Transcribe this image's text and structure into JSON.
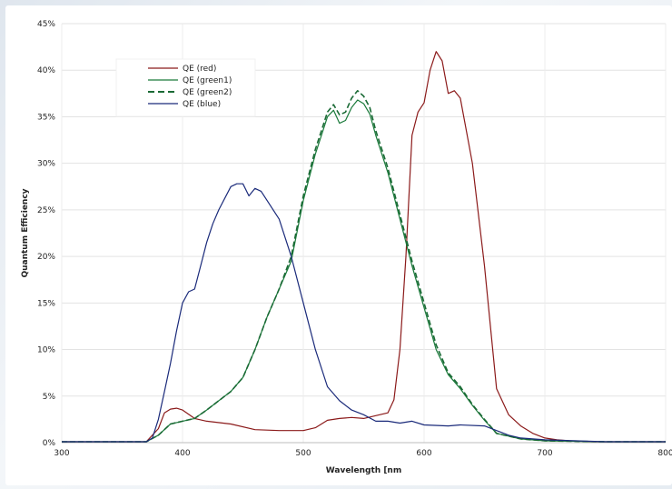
{
  "chart_data": {
    "type": "line",
    "title": "",
    "xlabel": "Wavelength [nm",
    "ylabel": "Quantum Efficiency",
    "xlim": [
      300,
      800
    ],
    "ylim": [
      0,
      45
    ],
    "x_ticks": [
      "300",
      "400",
      "500",
      "600",
      "700",
      "800"
    ],
    "y_ticks": [
      "0%",
      "5%",
      "10%",
      "15%",
      "20%",
      "25%",
      "30%",
      "35%",
      "40%",
      "45%"
    ],
    "grid": true,
    "legend_position": "top-left",
    "series": [
      {
        "name": "QE (red)",
        "color": "#8b1a1a",
        "dash": "solid",
        "x": [
          300,
          370,
          380,
          385,
          390,
          395,
          400,
          410,
          420,
          440,
          460,
          480,
          500,
          510,
          520,
          530,
          540,
          550,
          560,
          570,
          575,
          580,
          585,
          590,
          595,
          600,
          605,
          610,
          615,
          620,
          625,
          630,
          640,
          650,
          660,
          670,
          680,
          690,
          700,
          710,
          720,
          740,
          760,
          780,
          800
        ],
        "y": [
          0.1,
          0.1,
          1.5,
          3.2,
          3.6,
          3.7,
          3.5,
          2.6,
          2.3,
          2.0,
          1.4,
          1.3,
          1.3,
          1.6,
          2.4,
          2.6,
          2.7,
          2.6,
          2.9,
          3.2,
          4.6,
          10,
          20,
          33,
          35.5,
          36.5,
          40,
          42,
          41,
          37.5,
          37.8,
          37.0,
          30.0,
          19.0,
          5.8,
          3.0,
          1.8,
          1.0,
          0.5,
          0.3,
          0.2,
          0.1,
          0.1,
          0.1,
          0.1
        ]
      },
      {
        "name": "QE (green1)",
        "color": "#1a7a3a",
        "dash": "solid",
        "x": [
          300,
          370,
          380,
          390,
          400,
          410,
          420,
          430,
          440,
          450,
          460,
          470,
          480,
          490,
          500,
          510,
          520,
          525,
          530,
          535,
          540,
          545,
          550,
          555,
          560,
          570,
          580,
          590,
          600,
          610,
          620,
          630,
          640,
          650,
          660,
          680,
          700,
          750,
          800
        ],
        "y": [
          0.1,
          0.1,
          0.8,
          2.0,
          2.3,
          2.6,
          3.5,
          4.5,
          5.5,
          7,
          10,
          13.5,
          16.5,
          19.5,
          26,
          31,
          35,
          35.7,
          34.3,
          34.6,
          36,
          36.8,
          36.4,
          35.3,
          33,
          29,
          24,
          19,
          14.5,
          10,
          7.3,
          5.8,
          4.0,
          2.4,
          1.0,
          0.4,
          0.2,
          0.1,
          0.1
        ]
      },
      {
        "name": "QE (green2)",
        "color": "#1a6a35",
        "dash": "dashed",
        "x": [
          300,
          370,
          380,
          390,
          400,
          410,
          420,
          430,
          440,
          450,
          460,
          470,
          480,
          490,
          500,
          510,
          520,
          525,
          530,
          535,
          540,
          545,
          550,
          555,
          560,
          570,
          580,
          590,
          600,
          610,
          620,
          630,
          640,
          650,
          660,
          680,
          700,
          750,
          800
        ],
        "y": [
          0.1,
          0.1,
          0.8,
          2.0,
          2.3,
          2.6,
          3.5,
          4.5,
          5.5,
          7,
          10,
          13.5,
          16.5,
          20,
          26.5,
          31.5,
          35.5,
          36.3,
          35.2,
          35.5,
          37,
          37.8,
          37.2,
          36,
          33.5,
          29.5,
          24.5,
          19.5,
          15,
          10.5,
          7.5,
          6.0,
          4.1,
          2.5,
          1.0,
          0.4,
          0.2,
          0.1,
          0.1
        ]
      },
      {
        "name": "QE (blue)",
        "color": "#1a2a7a",
        "dash": "solid",
        "x": [
          300,
          370,
          375,
          380,
          385,
          390,
          395,
          400,
          405,
          410,
          415,
          420,
          425,
          430,
          440,
          445,
          450,
          455,
          460,
          465,
          470,
          480,
          490,
          500,
          510,
          520,
          530,
          540,
          550,
          560,
          570,
          580,
          590,
          600,
          620,
          630,
          650,
          670,
          680,
          700,
          750,
          800
        ],
        "y": [
          0.1,
          0.1,
          0.5,
          2.5,
          5.5,
          8.5,
          12,
          15,
          16.2,
          16.5,
          19,
          21.5,
          23.5,
          25,
          27.5,
          27.8,
          27.8,
          26.5,
          27.3,
          27,
          26,
          24,
          20,
          15,
          10,
          6,
          4.5,
          3.5,
          3.0,
          2.3,
          2.3,
          2.1,
          2.3,
          1.9,
          1.8,
          1.9,
          1.8,
          0.8,
          0.5,
          0.3,
          0.1,
          0.1
        ]
      }
    ]
  }
}
